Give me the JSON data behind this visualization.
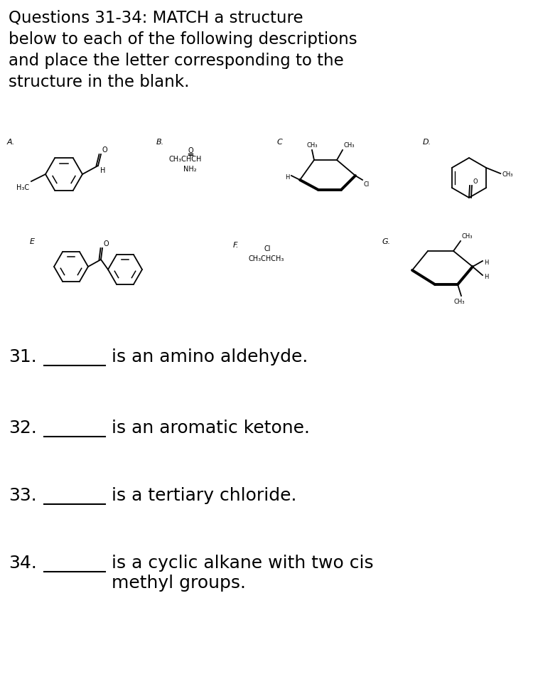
{
  "title_lines": [
    "Questions 31-34: MATCH a structure",
    "below to each of the following descriptions",
    "and place the letter corresponding to the",
    "structure in the blank."
  ],
  "questions": [
    {
      "num": "31.",
      "text": "is an amino aldehyde."
    },
    {
      "num": "32.",
      "text": "is an aromatic ketone."
    },
    {
      "num": "33.",
      "text": "is a tertiary chloride."
    },
    {
      "num": "34.",
      "text": "is a cyclic alkane with two cis\nmethyl groups."
    }
  ],
  "bg_color": "#ffffff",
  "text_color": "#000000",
  "title_fontsize": 16.5,
  "body_fontsize": 18,
  "label_fontsize": 8,
  "chem_fontsize": 8
}
